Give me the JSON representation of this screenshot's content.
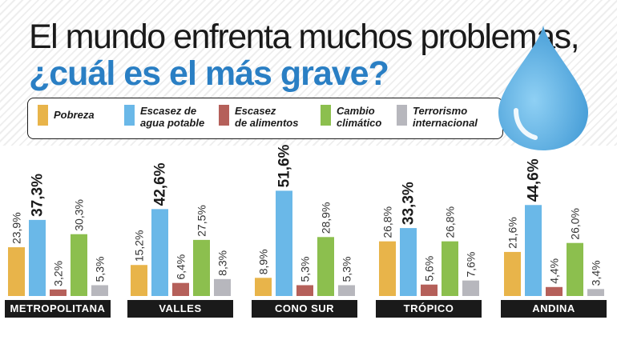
{
  "title_line1": "El mundo enfrenta muchos problemas,",
  "title_line2": "¿cuál es el más grave?",
  "legend": [
    {
      "label": "Pobreza",
      "color": "#e8b44a"
    },
    {
      "label": "Escasez de\nagua potable",
      "color": "#6ab8e8"
    },
    {
      "label": "Escasez\nde alimentos",
      "color": "#b5605a"
    },
    {
      "label": "Cambio\nclimático",
      "color": "#8cbf4e"
    },
    {
      "label": "Terrorismo\ninternacional",
      "color": "#b7b7bd"
    }
  ],
  "chart_data": {
    "type": "bar",
    "series_names": [
      "Pobreza",
      "Escasez de agua potable",
      "Escasez de alimentos",
      "Cambio climático",
      "Terrorismo internacional"
    ],
    "colors": [
      "#e8b44a",
      "#6ab8e8",
      "#b5605a",
      "#8cbf4e",
      "#b7b7bd"
    ],
    "groups": [
      {
        "name": "METROPOLITANA",
        "values": [
          23.9,
          37.3,
          3.2,
          30.3,
          5.3
        ],
        "labels": [
          "23,9%",
          "37,3%",
          "3,2%",
          "30,3%",
          "5,3%"
        ],
        "highlight": 1
      },
      {
        "name": "VALLES",
        "values": [
          15.2,
          42.6,
          6.4,
          27.5,
          8.3
        ],
        "labels": [
          "15,2%",
          "42,6%",
          "6,4%",
          "27,5%",
          "8,3%"
        ],
        "highlight": 1
      },
      {
        "name": "CONO SUR",
        "values": [
          8.9,
          51.6,
          5.3,
          28.9,
          5.3
        ],
        "labels": [
          "8,9%",
          "51,6%",
          "5,3%",
          "28,9%",
          "5,3%"
        ],
        "highlight": 1
      },
      {
        "name": "TRÓPICO",
        "values": [
          26.8,
          33.3,
          5.6,
          26.8,
          7.6
        ],
        "labels": [
          "26,8%",
          "33,3%",
          "5,6%",
          "26,8%",
          "7,6%"
        ],
        "highlight": 1
      },
      {
        "name": "ANDINA",
        "values": [
          21.6,
          44.6,
          4.4,
          26.0,
          3.4
        ],
        "labels": [
          "21,6%",
          "44,6%",
          "4,4%",
          "26,0%",
          "3,4%"
        ],
        "highlight": 1
      }
    ]
  }
}
